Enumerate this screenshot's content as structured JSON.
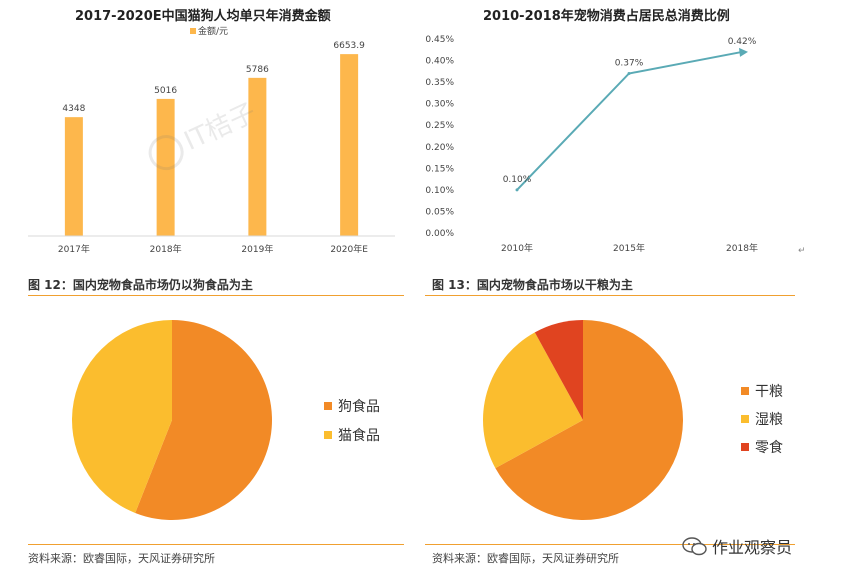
{
  "charts": {
    "bar": {
      "title": "2017-2020E中国猫狗人均单只年消费金额",
      "chart_data": {
        "type": "bar",
        "categories": [
          "2017年",
          "2018年",
          "2019年",
          "2020年E"
        ],
        "series": [
          {
            "name": "金额/元",
            "values": [
              4348,
              5016,
              5786,
              6653.9
            ]
          }
        ],
        "data_labels": [
          "4348",
          "5016",
          "5786",
          "6653.9"
        ],
        "ylim": [
          0,
          7500
        ],
        "grid": false,
        "legend": "top-center",
        "color": "#FDB74C"
      }
    },
    "line": {
      "title": "2010-2018年宠物消费占居民总消费比例",
      "chart_data": {
        "type": "line",
        "categories": [
          "2010年",
          "2015年",
          "2018年"
        ],
        "values": [
          0.1,
          0.37,
          0.42
        ],
        "data_labels": [
          "0.10%",
          "0.37%",
          "0.42%"
        ],
        "y_ticks": [
          "0.00%",
          "0.05%",
          "0.10%",
          "0.15%",
          "0.20%",
          "0.25%",
          "0.30%",
          "0.35%",
          "0.40%",
          "0.45%"
        ],
        "ylim": [
          0,
          0.45
        ],
        "grid": false,
        "color": "#5AAAB5"
      }
    },
    "pie1": {
      "caption": "图 12：国内宠物食品市场仍以狗食品为主",
      "chart_data": {
        "type": "pie",
        "labels": [
          "狗食品",
          "猫食品"
        ],
        "values": [
          56,
          44
        ],
        "colors": [
          "#F28A26",
          "#FBBD2E"
        ],
        "legend": "right"
      },
      "source": "资料来源：欧睿国际，天风证券研究所"
    },
    "pie2": {
      "caption": "图 13：国内宠物食品市场以干粮为主",
      "chart_data": {
        "type": "pie",
        "labels": [
          "干粮",
          "湿粮",
          "零食"
        ],
        "values": [
          67,
          25,
          8
        ],
        "colors": [
          "#F28A26",
          "#FBBD2E",
          "#E04420"
        ],
        "legend": "right"
      },
      "source": "资料来源：欧睿国际，天风证券研究所"
    }
  },
  "watermark": {
    "text": "作业观察员",
    "logo_text": "IT桔子"
  },
  "icons": {
    "wechat": "wechat-icon",
    "return_mark": "↵"
  }
}
